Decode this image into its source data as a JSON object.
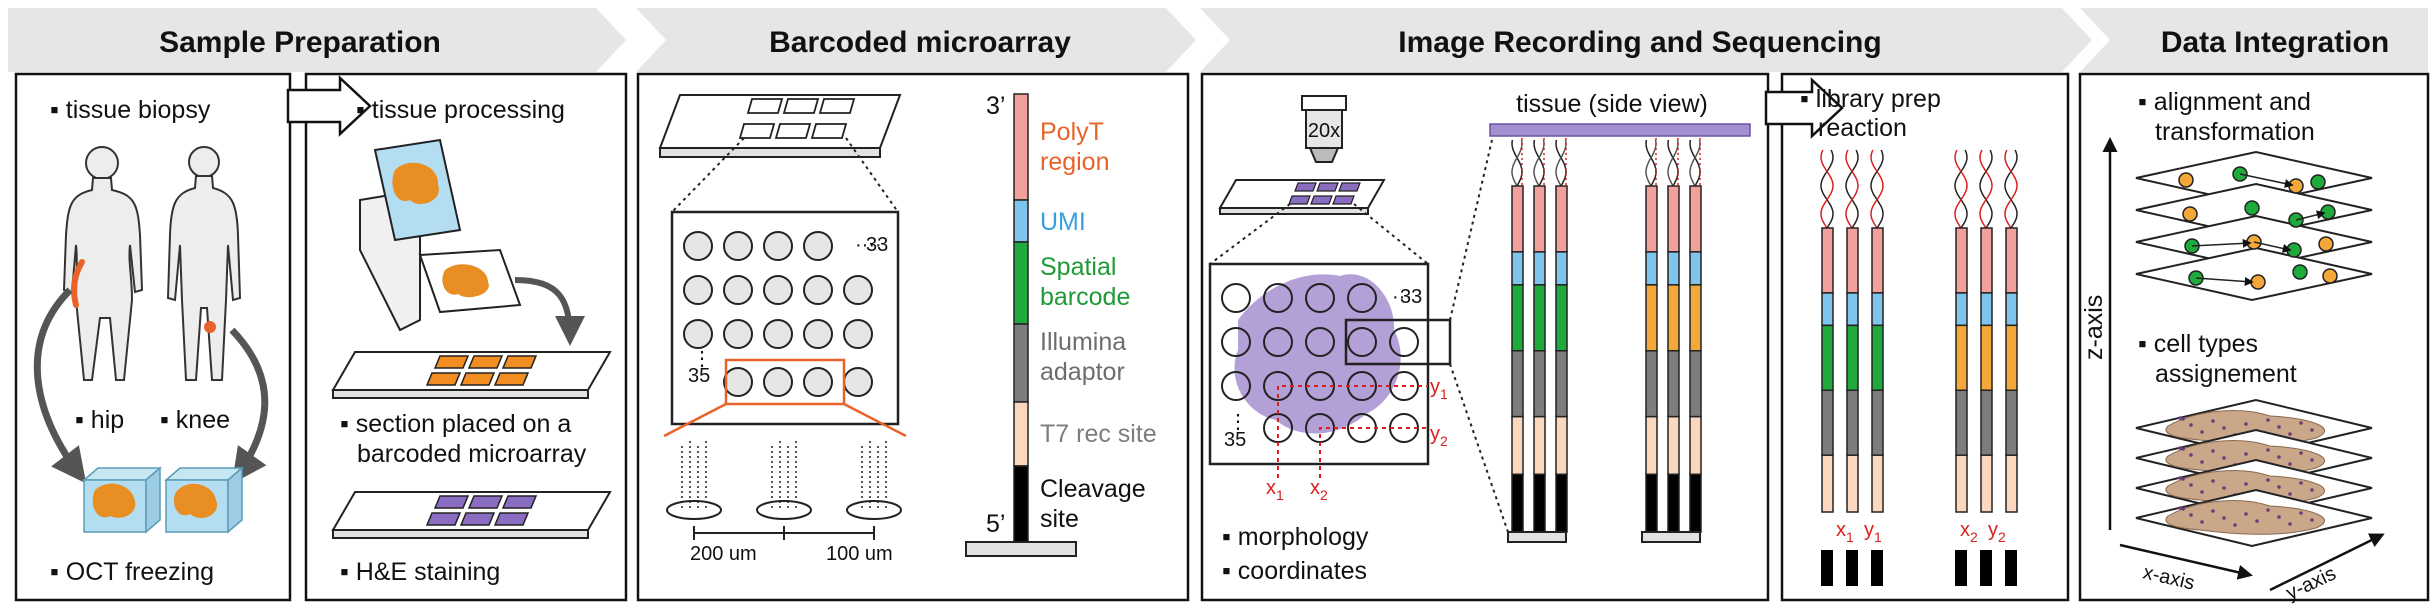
{
  "headers": {
    "sample_preparation": "Sample Preparation",
    "barcoded_microarray": "Barcoded microarray",
    "image_recording": "Image Recording and Sequencing",
    "data_integration": "Data Integration"
  },
  "sample": {
    "tissue_biopsy": "▪ tissue biopsy",
    "hip": "▪ hip",
    "knee": "▪ knee",
    "oct_freezing": "▪ OCT freezing",
    "tissue_processing": "▪ tissue processing",
    "section_line1": "▪ section placed on a",
    "section_line2": "barcoded microarray",
    "he_staining": "▪ H&E staining"
  },
  "microarray": {
    "spot_33": "33",
    "spot_35": "35",
    "dist_200": "200 um",
    "dist_100": "100 um",
    "prime3": "3’",
    "prime5": "5’",
    "polyt_line1": "PolyT",
    "polyt_line2": "region",
    "umi": "UMI",
    "spatial_line1": "Spatial",
    "spatial_line2": "barcode",
    "illumina_line1": "Illumina",
    "illumina_line2": "adaptor",
    "t7": "T7 rec site",
    "cleavage_line1": "Cleavage",
    "cleavage_line2": "site",
    "colors": {
      "polyt": "#f4a09a",
      "umi": "#7fc4ec",
      "spatial": "#1faa3c",
      "illumina": "#7d7d7d",
      "t7": "#fad7bd",
      "cleavage": "#000000",
      "polyt_text": "#e8632a",
      "umi_text": "#3a9fdd",
      "spatial_text": "#1e9a37",
      "illumina_text": "#6d6d6d",
      "t7_text": "#7d7d7d"
    }
  },
  "imaging": {
    "objective": "20x",
    "tissue_side": "tissue (side view)",
    "spot_33": "33",
    "spot_35": "35",
    "y1": "y",
    "y1_sub": "1",
    "y2": "y",
    "y2_sub": "2",
    "x1": "x",
    "x1_sub": "1",
    "x2": "x",
    "x2_sub": "2",
    "morphology": "▪ morphology",
    "coordinates": "▪ coordinates",
    "library_line1": "▪ library prep",
    "library_line2": "reaction",
    "lib_x1": "x",
    "lib_x1_sub": "1",
    "lib_y1": "y",
    "lib_y1_sub": "1",
    "lib_x2": "x",
    "lib_x2_sub": "2",
    "lib_y2": "y",
    "lib_y2_sub": "2",
    "orange_barcode": "#f5a83a"
  },
  "integration": {
    "alignment_line1": "▪ alignment and",
    "alignment_line2": "transformation",
    "cell_types_line1": "▪ cell types",
    "cell_types_line2": "assignement",
    "z_axis": "z-axis",
    "x_axis": "x-axis",
    "y_axis": "y-axis"
  }
}
